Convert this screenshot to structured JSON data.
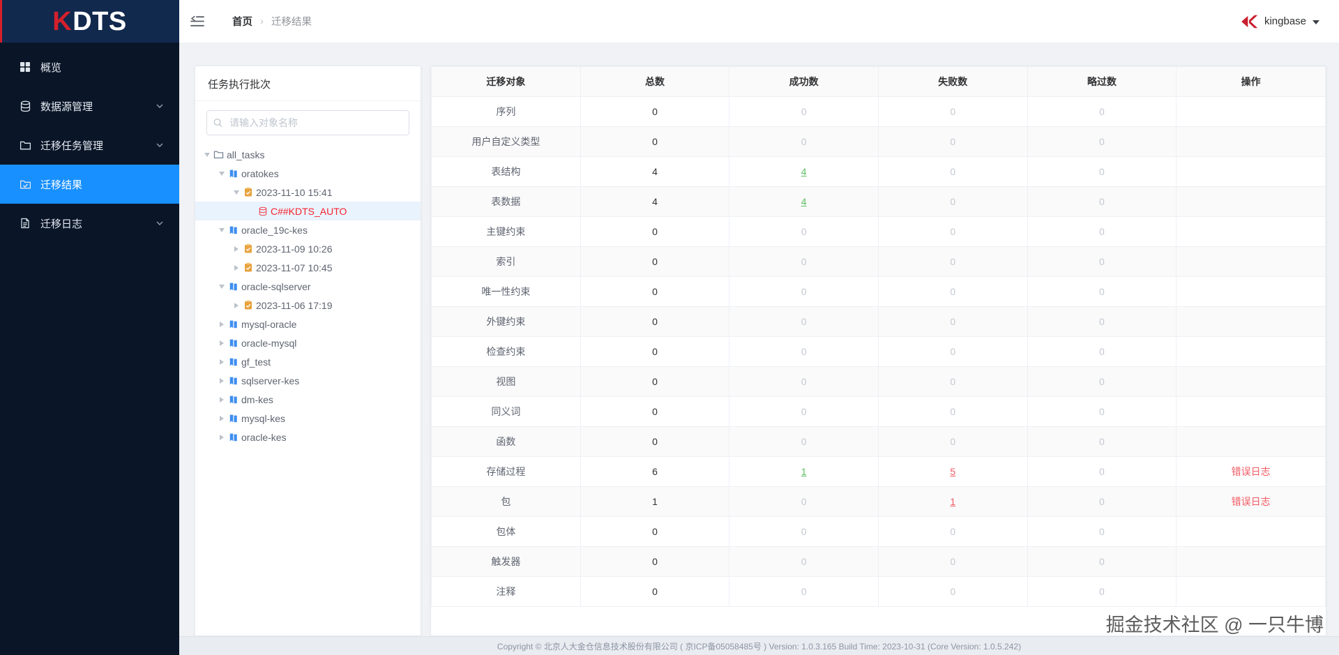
{
  "app": {
    "logo": {
      "k": "K",
      "rest": "DTS"
    }
  },
  "header": {
    "breadcrumb": {
      "home": "首页",
      "separator": "›",
      "current": "迁移结果"
    },
    "user": {
      "name": "kingbase"
    }
  },
  "sidebar": {
    "items": [
      {
        "label": "概览",
        "icon": "grid-icon",
        "active": false,
        "chevron": false
      },
      {
        "label": "数据源管理",
        "icon": "database-icon",
        "active": false,
        "chevron": true
      },
      {
        "label": "迁移任务管理",
        "icon": "folder-icon",
        "active": false,
        "chevron": true
      },
      {
        "label": "迁移结果",
        "icon": "folder-check-icon",
        "active": true,
        "chevron": false
      },
      {
        "label": "迁移日志",
        "icon": "document-icon",
        "active": false,
        "chevron": true
      }
    ]
  },
  "panel": {
    "title": "任务执行批次",
    "search_placeholder": "请输入对象名称",
    "tree": [
      {
        "label": "all_tasks",
        "level": 0,
        "caret": "down",
        "icon": "folder-icon",
        "selected": false
      },
      {
        "label": "oratokes",
        "level": 1,
        "caret": "down",
        "icon": "book-icon",
        "selected": false
      },
      {
        "label": "2023-11-10 15:41",
        "level": 2,
        "caret": "down",
        "icon": "clipboard-icon",
        "selected": false
      },
      {
        "label": "C##KDTS_AUTO",
        "level": 3,
        "caret": "none",
        "icon": "database-icon",
        "selected": true
      },
      {
        "label": "oracle_19c-kes",
        "level": 1,
        "caret": "down",
        "icon": "book-icon",
        "selected": false
      },
      {
        "label": "2023-11-09 10:26",
        "level": 2,
        "caret": "right",
        "icon": "clipboard-icon",
        "selected": false
      },
      {
        "label": "2023-11-07 10:45",
        "level": 2,
        "caret": "right",
        "icon": "clipboard-icon",
        "selected": false
      },
      {
        "label": "oracle-sqlserver",
        "level": 1,
        "caret": "down",
        "icon": "book-icon",
        "selected": false
      },
      {
        "label": "2023-11-06 17:19",
        "level": 2,
        "caret": "right",
        "icon": "clipboard-icon",
        "selected": false
      },
      {
        "label": "mysql-oracle",
        "level": 1,
        "caret": "right",
        "icon": "book-icon",
        "selected": false
      },
      {
        "label": "oracle-mysql",
        "level": 1,
        "caret": "right",
        "icon": "book-icon",
        "selected": false
      },
      {
        "label": "gf_test",
        "level": 1,
        "caret": "right",
        "icon": "book-icon",
        "selected": false
      },
      {
        "label": "sqlserver-kes",
        "level": 1,
        "caret": "right",
        "icon": "book-icon",
        "selected": false
      },
      {
        "label": "dm-kes",
        "level": 1,
        "caret": "right",
        "icon": "book-icon",
        "selected": false
      },
      {
        "label": "mysql-kes",
        "level": 1,
        "caret": "right",
        "icon": "book-icon",
        "selected": false
      },
      {
        "label": "oracle-kes",
        "level": 1,
        "caret": "right",
        "icon": "book-icon",
        "selected": false
      }
    ]
  },
  "table": {
    "columns": [
      "迁移对象",
      "总数",
      "成功数",
      "失败数",
      "略过数",
      "操作"
    ],
    "rows": [
      {
        "name": "序列",
        "cells": [
          [
            "0",
            "num"
          ],
          [
            "0",
            "muted"
          ],
          [
            "0",
            "muted"
          ],
          [
            "0",
            "muted"
          ],
          [
            "",
            ""
          ]
        ]
      },
      {
        "name": "用户自定义类型",
        "cells": [
          [
            "0",
            "num"
          ],
          [
            "0",
            "muted"
          ],
          [
            "0",
            "muted"
          ],
          [
            "0",
            "muted"
          ],
          [
            "",
            ""
          ]
        ]
      },
      {
        "name": "表结构",
        "cells": [
          [
            "4",
            "num"
          ],
          [
            "4",
            "green"
          ],
          [
            "0",
            "muted"
          ],
          [
            "0",
            "muted"
          ],
          [
            "",
            ""
          ]
        ]
      },
      {
        "name": "表数据",
        "cells": [
          [
            "4",
            "num"
          ],
          [
            "4",
            "green"
          ],
          [
            "0",
            "muted"
          ],
          [
            "0",
            "muted"
          ],
          [
            "",
            ""
          ]
        ]
      },
      {
        "name": "主键约束",
        "cells": [
          [
            "0",
            "num"
          ],
          [
            "0",
            "muted"
          ],
          [
            "0",
            "muted"
          ],
          [
            "0",
            "muted"
          ],
          [
            "",
            ""
          ]
        ]
      },
      {
        "name": "索引",
        "cells": [
          [
            "0",
            "num"
          ],
          [
            "0",
            "muted"
          ],
          [
            "0",
            "muted"
          ],
          [
            "0",
            "muted"
          ],
          [
            "",
            ""
          ]
        ]
      },
      {
        "name": "唯一性约束",
        "cells": [
          [
            "0",
            "num"
          ],
          [
            "0",
            "muted"
          ],
          [
            "0",
            "muted"
          ],
          [
            "0",
            "muted"
          ],
          [
            "",
            ""
          ]
        ]
      },
      {
        "name": "外键约束",
        "cells": [
          [
            "0",
            "num"
          ],
          [
            "0",
            "muted"
          ],
          [
            "0",
            "muted"
          ],
          [
            "0",
            "muted"
          ],
          [
            "",
            ""
          ]
        ]
      },
      {
        "name": "检查约束",
        "cells": [
          [
            "0",
            "num"
          ],
          [
            "0",
            "muted"
          ],
          [
            "0",
            "muted"
          ],
          [
            "0",
            "muted"
          ],
          [
            "",
            ""
          ]
        ]
      },
      {
        "name": "视图",
        "cells": [
          [
            "0",
            "num"
          ],
          [
            "0",
            "muted"
          ],
          [
            "0",
            "muted"
          ],
          [
            "0",
            "muted"
          ],
          [
            "",
            ""
          ]
        ]
      },
      {
        "name": "同义词",
        "cells": [
          [
            "0",
            "num"
          ],
          [
            "0",
            "muted"
          ],
          [
            "0",
            "muted"
          ],
          [
            "0",
            "muted"
          ],
          [
            "",
            ""
          ]
        ]
      },
      {
        "name": "函数",
        "cells": [
          [
            "0",
            "num"
          ],
          [
            "0",
            "muted"
          ],
          [
            "0",
            "muted"
          ],
          [
            "0",
            "muted"
          ],
          [
            "",
            ""
          ]
        ]
      },
      {
        "name": "存储过程",
        "cells": [
          [
            "6",
            "num"
          ],
          [
            "1",
            "green"
          ],
          [
            "5",
            "red"
          ],
          [
            "0",
            "muted"
          ],
          [
            "错误日志",
            "error"
          ]
        ]
      },
      {
        "name": "包",
        "cells": [
          [
            "1",
            "num"
          ],
          [
            "0",
            "muted"
          ],
          [
            "1",
            "red"
          ],
          [
            "0",
            "muted"
          ],
          [
            "错误日志",
            "error"
          ]
        ]
      },
      {
        "name": "包体",
        "cells": [
          [
            "0",
            "num"
          ],
          [
            "0",
            "muted"
          ],
          [
            "0",
            "muted"
          ],
          [
            "0",
            "muted"
          ],
          [
            "",
            ""
          ]
        ]
      },
      {
        "name": "触发器",
        "cells": [
          [
            "0",
            "num"
          ],
          [
            "0",
            "muted"
          ],
          [
            "0",
            "muted"
          ],
          [
            "0",
            "muted"
          ],
          [
            "",
            ""
          ]
        ]
      },
      {
        "name": "注释",
        "cells": [
          [
            "0",
            "num"
          ],
          [
            "0",
            "muted"
          ],
          [
            "0",
            "muted"
          ],
          [
            "0",
            "muted"
          ],
          [
            "",
            ""
          ]
        ]
      }
    ]
  },
  "footer": {
    "copyright": "Copyright © 北京人大金仓信息技术股份有限公司 ( 京ICP备05058485号 ) Version: 1.0.3.165 Build Time: 2023-10-31 (Core Version: 1.0.5.242)"
  },
  "watermark": "掘金技术社区 @ 一只牛博",
  "icons": {
    "menu-collapse": "three-bars-with-left-arrow",
    "search": "magnifier",
    "kingbase-logo": "red-arrow-k",
    "tree-expanded": "triangle-down",
    "tree-collapsed": "triangle-right"
  },
  "colors": {
    "accent": "#1890ff",
    "brand_red": "#c8202f",
    "sidebar_bg": "#0a1628",
    "logo_bg": "#12294e",
    "success_link": "#5dbe62",
    "danger_link": "#f25a63",
    "tree_selected_text": "#f5222d",
    "tree_selected_bg": "#e9f3fd"
  }
}
